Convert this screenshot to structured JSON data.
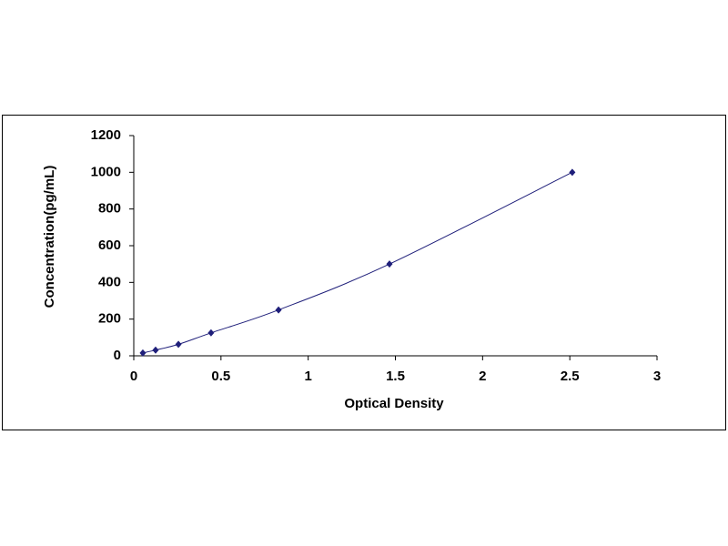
{
  "chart_data": {
    "type": "scatter",
    "xlabel": "Optical Density",
    "ylabel": "Concentration(pg/mL)",
    "series": [
      {
        "color": "#1f1f7a",
        "x": [
          0.052,
          0.125,
          0.256,
          0.443,
          0.83,
          1.466,
          2.514
        ],
        "values": [
          15.6,
          31.25,
          62.5,
          125,
          250,
          500,
          1000
        ]
      }
    ],
    "line": "smooth",
    "xlim": [
      0,
      3
    ],
    "xticks": [
      0,
      0.5,
      1,
      1.5,
      2,
      2.5,
      3
    ],
    "ylim": [
      0,
      1200
    ],
    "yticks": [
      0,
      200,
      400,
      600,
      800,
      1000,
      1200
    ]
  }
}
